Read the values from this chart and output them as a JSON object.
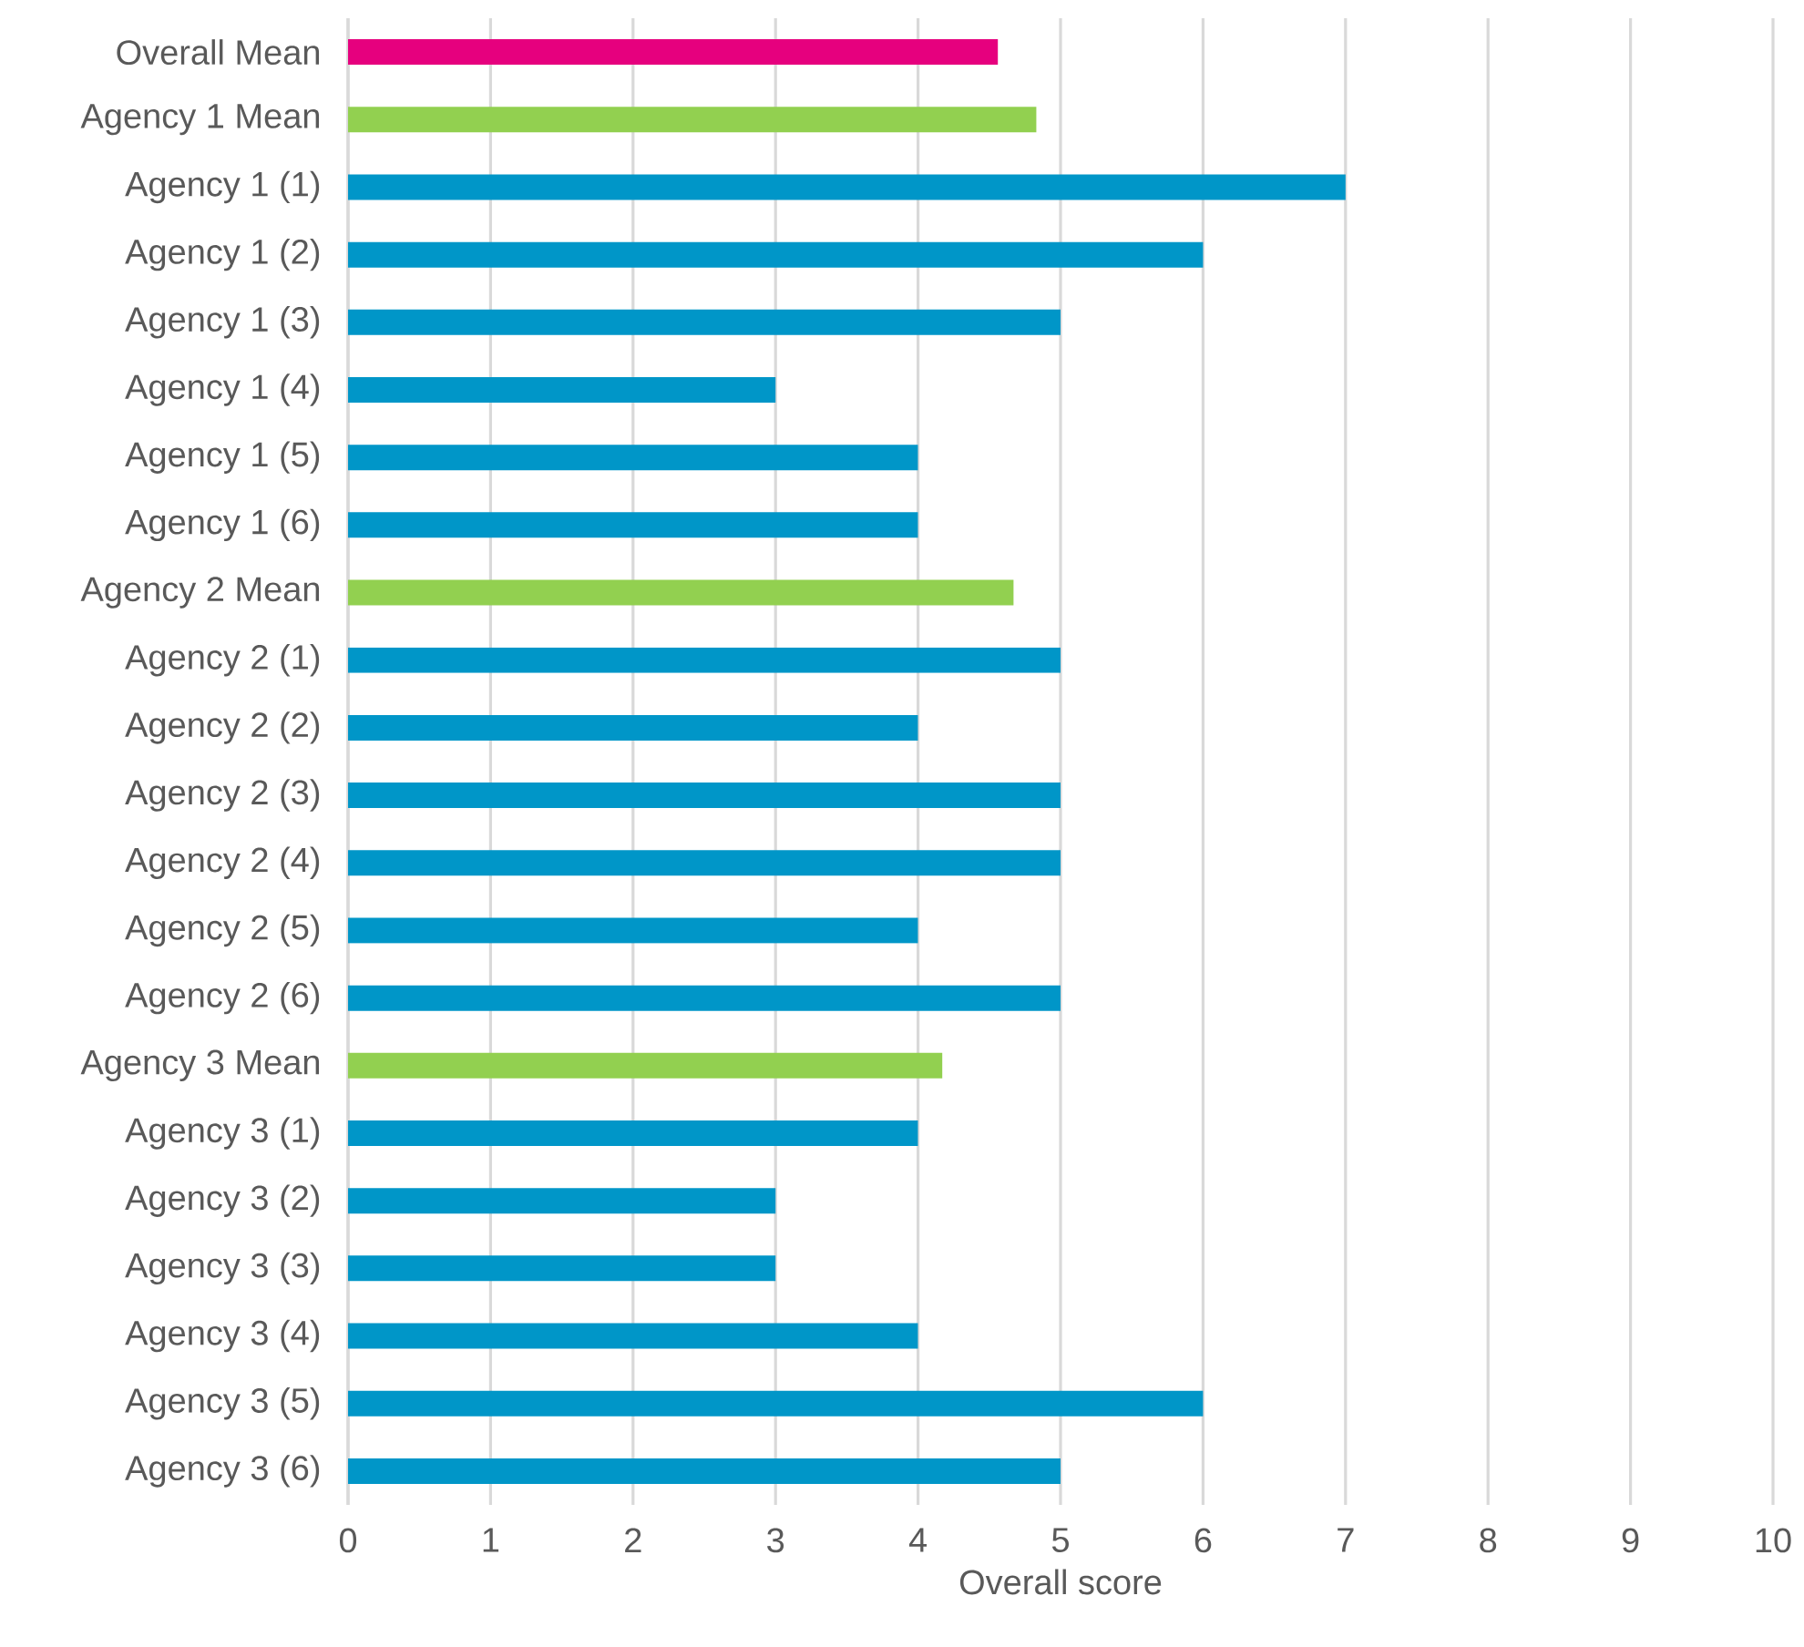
{
  "chart_data": {
    "type": "bar",
    "orientation": "horizontal",
    "categories": [
      "Overall Mean",
      "Agency 1 Mean",
      "Agency 1 (1)",
      "Agency 1 (2)",
      "Agency 1 (3)",
      "Agency 1 (4)",
      "Agency 1 (5)",
      "Agency 1 (6)",
      "Agency 2 Mean",
      "Agency 2 (1)",
      "Agency 2 (2)",
      "Agency 2 (3)",
      "Agency 2 (4)",
      "Agency 2 (5)",
      "Agency 2 (6)",
      "Agency 3 Mean",
      "Agency 3 (1)",
      "Agency 3 (2)",
      "Agency 3 (3)",
      "Agency 3 (4)",
      "Agency 3 (5)",
      "Agency 3 (6)"
    ],
    "values": [
      4.56,
      4.83,
      7,
      6,
      5,
      3,
      4,
      4,
      4.67,
      5,
      4,
      5,
      5,
      4,
      5,
      4.17,
      4,
      3,
      3,
      4,
      6,
      5
    ],
    "colors": [
      "#e6007e",
      "#92d050",
      "#0096c8",
      "#0096c8",
      "#0096c8",
      "#0096c8",
      "#0096c8",
      "#0096c8",
      "#92d050",
      "#0096c8",
      "#0096c8",
      "#0096c8",
      "#0096c8",
      "#0096c8",
      "#0096c8",
      "#92d050",
      "#0096c8",
      "#0096c8",
      "#0096c8",
      "#0096c8",
      "#0096c8",
      "#0096c8"
    ],
    "xlim": [
      0,
      10
    ],
    "xticks": [
      0,
      1,
      2,
      3,
      4,
      5,
      6,
      7,
      8,
      9,
      10
    ],
    "xlabel": "Overall score",
    "grid": "x"
  }
}
